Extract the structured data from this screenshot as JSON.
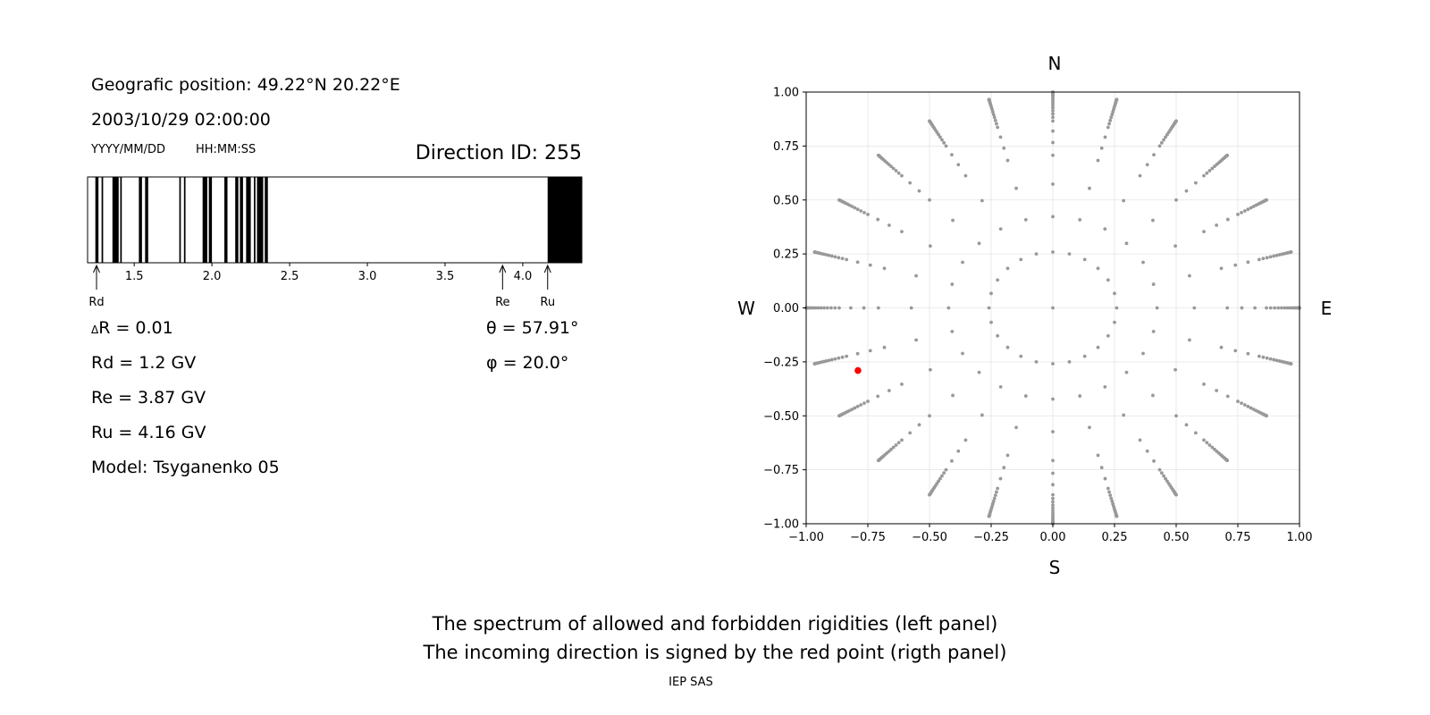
{
  "info": {
    "position": "Geografic position: 49.22°N 20.22°E",
    "datetime": "2003/10/29 02:00:00",
    "date_format": "YYYY/MM/DD",
    "time_format": "HH:MM:SS",
    "direction": "Direction ID: 255"
  },
  "params": {
    "delta_r": "R = 0.01",
    "delta_symbol": "Δ",
    "rd": "Rd = 1.2 GV",
    "re": "Re = 3.87 GV",
    "ru": "Ru = 4.16 GV",
    "model": "Model: Tsyganenko 05",
    "theta": "θ = 57.91°",
    "phi": "φ = 20.0°"
  },
  "caption": {
    "line1": "The spectrum of allowed and forbidden rigidities (left panel)",
    "line2": "The incoming direction is signed by the red point (rigth panel)",
    "footer": "IEP SAS"
  },
  "chart_data": [
    {
      "type": "bar",
      "description_role": "rigidity spectrum",
      "xlim": [
        1.2,
        4.38
      ],
      "ticks": [
        "1.5",
        "2.0",
        "2.5",
        "3.0",
        "3.5",
        "4.0"
      ],
      "tick_values": [
        1.5,
        2.0,
        2.5,
        3.0,
        3.5,
        4.0
      ],
      "forbidden_bands": [
        [
          1.25,
          1.27
        ],
        [
          1.29,
          1.3
        ],
        [
          1.36,
          1.4
        ],
        [
          1.41,
          1.42
        ],
        [
          1.53,
          1.55
        ],
        [
          1.57,
          1.59
        ],
        [
          1.79,
          1.8
        ],
        [
          1.82,
          1.83
        ],
        [
          1.94,
          1.97
        ],
        [
          1.98,
          2.0
        ],
        [
          2.08,
          2.1
        ],
        [
          2.15,
          2.17
        ],
        [
          2.18,
          2.2
        ],
        [
          2.22,
          2.25
        ],
        [
          2.27,
          2.28
        ],
        [
          2.29,
          2.33
        ],
        [
          2.34,
          2.36
        ],
        [
          4.16,
          4.38
        ]
      ],
      "markers": [
        {
          "label": "Rd",
          "value": 1.2
        },
        {
          "label": "Re",
          "value": 3.87
        },
        {
          "label": "Ru",
          "value": 4.16
        }
      ],
      "colors": {
        "forbidden": "#000000",
        "allowed": "#ffffff"
      }
    },
    {
      "type": "scatter",
      "description_role": "direction map",
      "xlim": [
        -1.0,
        1.0
      ],
      "ylim": [
        -1.0,
        1.0
      ],
      "xticks": [
        "−1.00",
        "−0.75",
        "−0.50",
        "−0.25",
        "0.00",
        "0.25",
        "0.50",
        "0.75",
        "1.00"
      ],
      "yticks": [
        "1.00",
        "0.75",
        "0.50",
        "0.25",
        "0.00",
        "−0.25",
        "−0.50",
        "−0.75",
        "−1.00"
      ],
      "tick_values": [
        -1.0,
        -0.75,
        -0.5,
        -0.25,
        0.0,
        0.25,
        0.5,
        0.75,
        1.0
      ],
      "compass": {
        "north": "N",
        "south": "S",
        "west": "W",
        "east": "E"
      },
      "grid": true,
      "grid_pattern": {
        "zenith_angles_deg": [
          0,
          15,
          25,
          35,
          45,
          50,
          55,
          60,
          62,
          64,
          66,
          68,
          70,
          72,
          74,
          76,
          78,
          80,
          82,
          84,
          86,
          88,
          90
        ],
        "azimuth_step_deg": 15,
        "radius": "sin(zenith)"
      },
      "highlight": {
        "x": -0.79,
        "y": -0.29,
        "theta_deg": 57.91,
        "phi_deg": 20.0
      },
      "colors": {
        "grid_points": "#999999",
        "highlight": "#ff0000"
      }
    }
  ]
}
